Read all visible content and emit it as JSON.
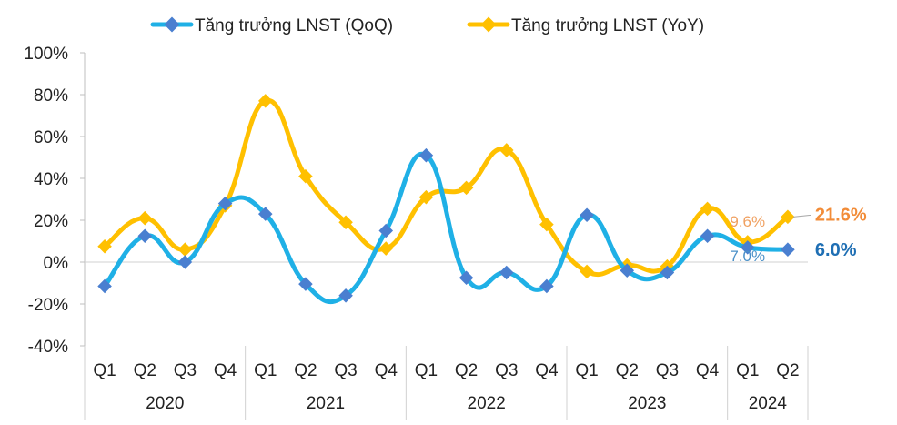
{
  "chart_data": {
    "type": "line",
    "title": "",
    "xlabel": "",
    "ylabel": "",
    "ylim": [
      -40,
      100
    ],
    "yticks": [
      {
        "value": 100,
        "label": "100%"
      },
      {
        "value": 80,
        "label": "80%"
      },
      {
        "value": 60,
        "label": "60%"
      },
      {
        "value": 40,
        "label": "40%"
      },
      {
        "value": 20,
        "label": "20%"
      },
      {
        "value": 0,
        "label": "0%"
      },
      {
        "value": -20,
        "label": "-20%"
      },
      {
        "value": -40,
        "label": "-40%"
      }
    ],
    "categories": [
      "Q1",
      "Q2",
      "Q3",
      "Q4",
      "Q1",
      "Q2",
      "Q3",
      "Q4",
      "Q1",
      "Q2",
      "Q3",
      "Q4",
      "Q1",
      "Q2",
      "Q3",
      "Q4",
      "Q1",
      "Q2"
    ],
    "year_groups": [
      {
        "label": "2020",
        "count": 4
      },
      {
        "label": "2021",
        "count": 4
      },
      {
        "label": "2022",
        "count": 4
      },
      {
        "label": "2023",
        "count": 4
      },
      {
        "label": "2024",
        "count": 2
      }
    ],
    "legend_position": "top",
    "grid": false,
    "series": [
      {
        "name": "Tăng trưởng LNST (QoQ)",
        "color": "#1fb0e6",
        "marker_color": "#4a7fd0",
        "values": [
          -11.5,
          12.5,
          0,
          28,
          23,
          -10.5,
          -16,
          15,
          51,
          -7.5,
          -5,
          -11.5,
          22.5,
          -4,
          -5,
          12.5,
          7.0,
          6.0
        ]
      },
      {
        "name": "Tăng trưởng LNST (YoY)",
        "color": "#ffc000",
        "marker_color": "#ffc000",
        "values": [
          7.5,
          21,
          6,
          27,
          77,
          41,
          19,
          6.5,
          31,
          35.5,
          53.5,
          18,
          -4.5,
          -1.5,
          -2,
          25.5,
          9.6,
          21.6
        ]
      }
    ],
    "annotations": [
      {
        "text": "7.0%",
        "series": 0,
        "index": 16,
        "style": "small",
        "color": "#4a90c8"
      },
      {
        "text": "9.6%",
        "series": 1,
        "index": 16,
        "style": "small",
        "color": "#f0a060"
      },
      {
        "text": "6.0%",
        "series": 0,
        "index": 17,
        "style": "big",
        "color": "#1f6fb4"
      },
      {
        "text": "21.6%",
        "series": 1,
        "index": 17,
        "style": "big",
        "color": "#f28c38"
      }
    ]
  }
}
